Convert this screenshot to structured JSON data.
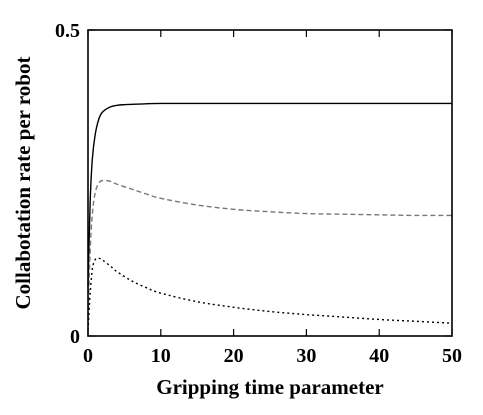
{
  "chart_data": {
    "type": "line",
    "title": "",
    "xlabel": "Gripping time parameter",
    "ylabel": "Collabotation rate per robot",
    "xlim": [
      0,
      50
    ],
    "ylim": [
      0,
      0.5
    ],
    "x_ticks": [
      0,
      10,
      20,
      30,
      40,
      50
    ],
    "y_ticks": [
      0,
      0.5
    ],
    "x_tick_labels": [
      "0",
      "10",
      "20",
      "30",
      "40",
      "50"
    ],
    "y_tick_labels": [
      "0",
      "0.5"
    ],
    "grid": false,
    "legend": "none",
    "series": [
      {
        "style": "solid",
        "color": "#000000",
        "x": [
          0,
          0.3,
          0.6,
          1,
          1.5,
          2,
          3,
          4,
          5,
          7,
          10,
          15,
          20,
          30,
          40,
          50
        ],
        "y": [
          0.08,
          0.22,
          0.29,
          0.33,
          0.355,
          0.366,
          0.374,
          0.377,
          0.378,
          0.379,
          0.38,
          0.38,
          0.38,
          0.38,
          0.38,
          0.38
        ]
      },
      {
        "style": "dashed",
        "color": "#777777",
        "x": [
          0,
          0.3,
          0.6,
          1,
          1.5,
          2,
          3,
          4,
          6,
          8,
          10,
          15,
          20,
          25,
          30,
          35,
          40,
          45,
          50
        ],
        "y": [
          0.03,
          0.14,
          0.2,
          0.235,
          0.25,
          0.254,
          0.253,
          0.248,
          0.24,
          0.232,
          0.225,
          0.214,
          0.207,
          0.203,
          0.2,
          0.199,
          0.198,
          0.197,
          0.197
        ]
      },
      {
        "style": "dotted",
        "color": "#000000",
        "x": [
          0,
          0.3,
          0.6,
          1,
          1.5,
          2,
          3,
          4,
          6,
          8,
          10,
          15,
          20,
          25,
          30,
          35,
          40,
          45,
          50
        ],
        "y": [
          0.01,
          0.07,
          0.11,
          0.125,
          0.127,
          0.124,
          0.115,
          0.105,
          0.09,
          0.079,
          0.07,
          0.056,
          0.047,
          0.04,
          0.035,
          0.031,
          0.027,
          0.024,
          0.021
        ]
      }
    ]
  }
}
